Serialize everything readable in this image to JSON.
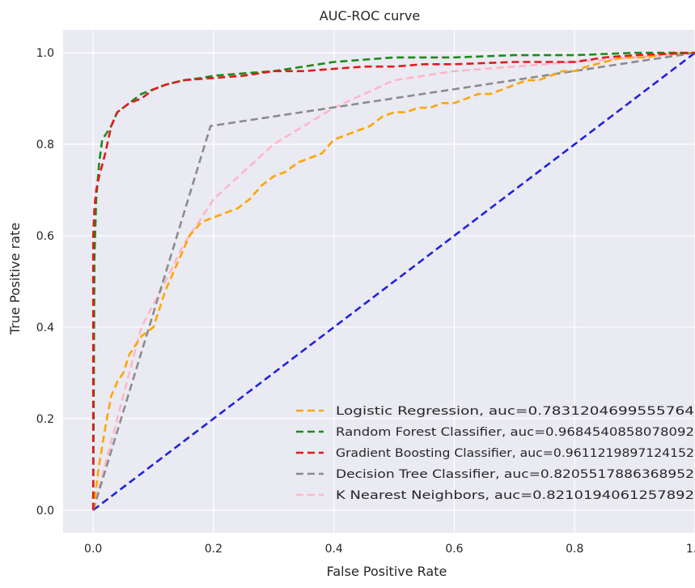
{
  "chart_data": {
    "type": "line",
    "title": "AUC-ROC curve",
    "xlabel": "False Positive Rate",
    "ylabel": "True Positive rate",
    "xlim": [
      -0.05,
      1.0
    ],
    "ylim": [
      -0.05,
      1.05
    ],
    "xticks": [
      "0.0",
      "0.2",
      "0.4",
      "0.6",
      "0.8",
      "1.0"
    ],
    "yticks": [
      "0.0",
      "0.2",
      "0.4",
      "0.6",
      "0.8",
      "1.0"
    ],
    "grid": true,
    "legend_position": "lower-right",
    "background": "#eaeaf2",
    "series": [
      {
        "name": "Logistic Regression, auc=0.7831204699555764",
        "color": "#ffa500",
        "x": [
          0,
          0.01,
          0.02,
          0.03,
          0.04,
          0.05,
          0.06,
          0.08,
          0.1,
          0.12,
          0.14,
          0.16,
          0.18,
          0.2,
          0.22,
          0.24,
          0.26,
          0.28,
          0.3,
          0.32,
          0.34,
          0.36,
          0.38,
          0.4,
          0.42,
          0.44,
          0.46,
          0.48,
          0.5,
          0.52,
          0.54,
          0.56,
          0.58,
          0.6,
          0.62,
          0.64,
          0.66,
          0.68,
          0.7,
          0.72,
          0.74,
          0.76,
          0.78,
          0.8,
          0.82,
          0.85,
          0.88,
          0.92,
          0.96,
          1.0
        ],
        "y": [
          0,
          0.1,
          0.18,
          0.25,
          0.28,
          0.3,
          0.34,
          0.38,
          0.4,
          0.48,
          0.54,
          0.6,
          0.63,
          0.64,
          0.65,
          0.66,
          0.68,
          0.71,
          0.73,
          0.74,
          0.76,
          0.77,
          0.78,
          0.81,
          0.82,
          0.83,
          0.84,
          0.86,
          0.87,
          0.87,
          0.88,
          0.88,
          0.89,
          0.89,
          0.9,
          0.91,
          0.91,
          0.92,
          0.93,
          0.94,
          0.94,
          0.95,
          0.96,
          0.96,
          0.97,
          0.98,
          0.99,
          0.99,
          1.0,
          1.0
        ]
      },
      {
        "name": "Random Forest Classifier, auc=0.9684540858078092",
        "color": "#1a8c1a",
        "x": [
          0,
          0.002,
          0.005,
          0.01,
          0.015,
          0.02,
          0.03,
          0.04,
          0.05,
          0.06,
          0.08,
          0.1,
          0.12,
          0.15,
          0.18,
          0.2,
          0.25,
          0.3,
          0.35,
          0.4,
          0.45,
          0.5,
          0.55,
          0.6,
          0.7,
          0.8,
          0.9,
          1.0
        ],
        "y": [
          0,
          0.55,
          0.68,
          0.76,
          0.81,
          0.82,
          0.84,
          0.87,
          0.88,
          0.89,
          0.91,
          0.92,
          0.93,
          0.94,
          0.945,
          0.95,
          0.955,
          0.96,
          0.97,
          0.98,
          0.985,
          0.99,
          0.99,
          0.99,
          0.995,
          0.995,
          1.0,
          1.0
        ]
      },
      {
        "name": "Gradient Boosting Classifier, auc=0.9611219897124152",
        "color": "#e01b1b",
        "x": [
          0,
          0.0,
          0.002,
          0.005,
          0.01,
          0.02,
          0.03,
          0.04,
          0.05,
          0.06,
          0.08,
          0.1,
          0.12,
          0.15,
          0.2,
          0.25,
          0.3,
          0.35,
          0.4,
          0.45,
          0.5,
          0.55,
          0.6,
          0.7,
          0.8,
          0.85,
          0.9,
          1.0
        ],
        "y": [
          0,
          0.6,
          0.66,
          0.7,
          0.73,
          0.78,
          0.84,
          0.87,
          0.88,
          0.89,
          0.9,
          0.92,
          0.93,
          0.94,
          0.945,
          0.95,
          0.96,
          0.96,
          0.965,
          0.97,
          0.97,
          0.975,
          0.975,
          0.98,
          0.98,
          0.99,
          0.995,
          1.0
        ]
      },
      {
        "name": "Decision Tree Classifier, auc=0.8205517886368952",
        "color": "#8c8c8c",
        "x": [
          0,
          0.195,
          1.0
        ],
        "y": [
          0,
          0.84,
          1.0
        ]
      },
      {
        "name": "K Nearest Neighbors, auc=0.8210194061257892",
        "color": "#ffb6c8",
        "x": [
          0,
          0.02,
          0.05,
          0.08,
          0.12,
          0.15,
          0.2,
          0.25,
          0.3,
          0.35,
          0.4,
          0.45,
          0.5,
          0.55,
          0.6,
          0.7,
          0.8,
          0.9,
          1.0
        ],
        "y": [
          0,
          0.1,
          0.25,
          0.4,
          0.5,
          0.58,
          0.68,
          0.74,
          0.8,
          0.84,
          0.88,
          0.91,
          0.94,
          0.95,
          0.96,
          0.97,
          0.98,
          0.99,
          1.0
        ]
      },
      {
        "name": "",
        "color": "#2222dd",
        "x": [
          0,
          1.0
        ],
        "y": [
          0,
          1.0
        ]
      }
    ]
  }
}
